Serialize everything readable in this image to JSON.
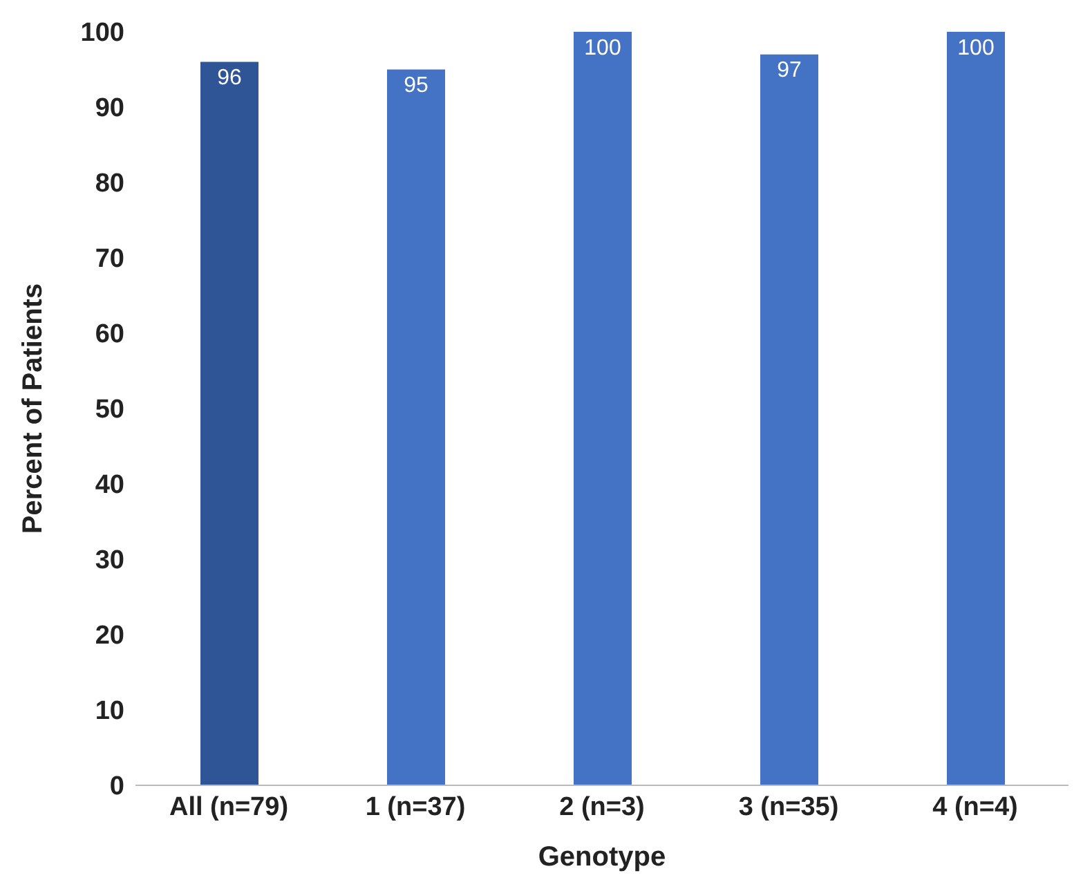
{
  "chart_data": {
    "type": "bar",
    "xlabel": "Genotype",
    "ylabel": "Percent of Patients",
    "categories": [
      "All (n=79)",
      "1 (n=37)",
      "2 (n=3)",
      "3 (n=35)",
      "4 (n=4)"
    ],
    "values": [
      96,
      95,
      100,
      97,
      100
    ],
    "colors": [
      "#2f5597",
      "#4472c4",
      "#4472c4",
      "#4472c4",
      "#4472c4"
    ],
    "ylim": [
      0,
      100
    ],
    "yticks": [
      0,
      10,
      20,
      30,
      40,
      50,
      60,
      70,
      80,
      90,
      100
    ],
    "grid": false,
    "data_labels": true
  }
}
